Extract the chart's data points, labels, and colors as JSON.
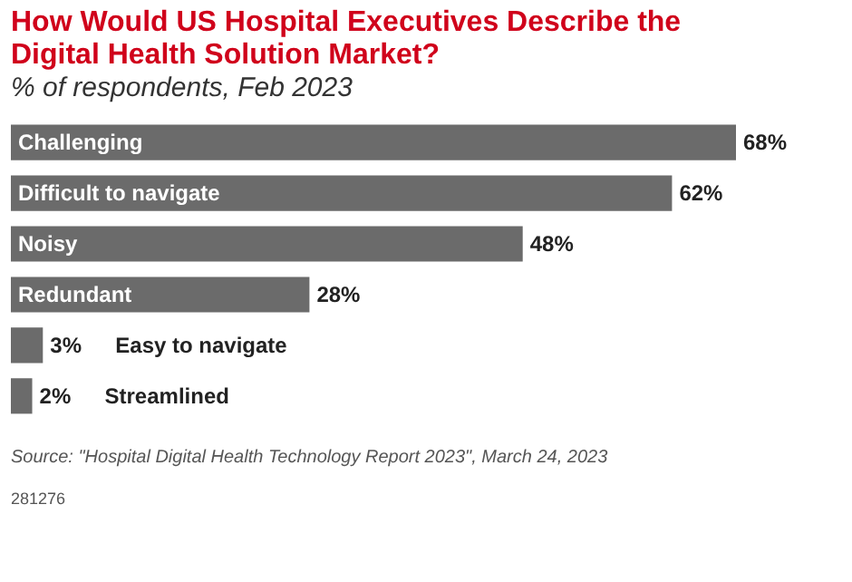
{
  "chart_data": {
    "type": "bar",
    "orientation": "horizontal",
    "title": "How Would US Hospital Executives Describe the Digital Health Solution Market?",
    "subtitle": "% of respondents, Feb 2023",
    "categories": [
      "Challenging",
      "Difficult to navigate",
      "Noisy",
      "Redundant",
      "Easy to navigate",
      "Streamlined"
    ],
    "values": [
      68,
      62,
      48,
      28,
      3,
      2
    ],
    "color": "#6b6b6b",
    "value_labels": [
      "68%",
      "62%",
      "48%",
      "28%",
      "3%",
      "2%"
    ],
    "annotations": [
      "Source: \"Hospital Digital Health Technology Report 2023\", March 24, 2023",
      "281276"
    ]
  }
}
